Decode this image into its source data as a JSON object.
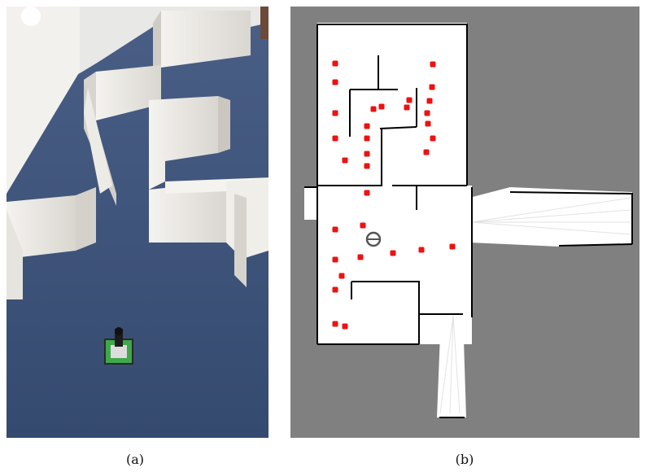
{
  "captions": {
    "a": "(a)",
    "b": "(b)"
  },
  "colors": {
    "map_unknown": "#808080",
    "map_free": "#ffffff",
    "map_wall": "#000000",
    "marker": "#ee1111",
    "robot_pose": "#555555",
    "carpet": "#3d5478",
    "partition": "#e9e7e2"
  },
  "map": {
    "marker_count": 32,
    "robot_marker": "circle-with-heading-line"
  }
}
